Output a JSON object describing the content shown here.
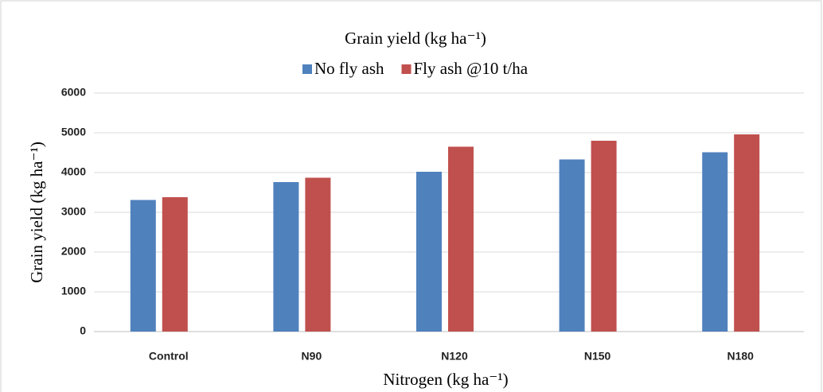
{
  "chart_data": {
    "type": "bar",
    "title": "Grain yield (kg ha⁻¹)",
    "x_label": "Nitrogen (kg ha⁻¹)",
    "y_label": "Grain yield (kg ha⁻¹)",
    "categories": [
      "Control",
      "N90",
      "N120",
      "N150",
      "N180"
    ],
    "series": [
      {
        "name": "No fly ash",
        "color": "#4f81bd",
        "values": [
          3310,
          3760,
          4020,
          4330,
          4510
        ]
      },
      {
        "name": "Fly ash @10 t/ha",
        "color": "#c0504d",
        "values": [
          3380,
          3870,
          4650,
          4800,
          4960
        ]
      }
    ],
    "ylim": [
      0,
      6000
    ],
    "yticks": [
      0,
      1000,
      2000,
      3000,
      4000,
      5000,
      6000
    ],
    "grid": true,
    "legend": "top"
  }
}
